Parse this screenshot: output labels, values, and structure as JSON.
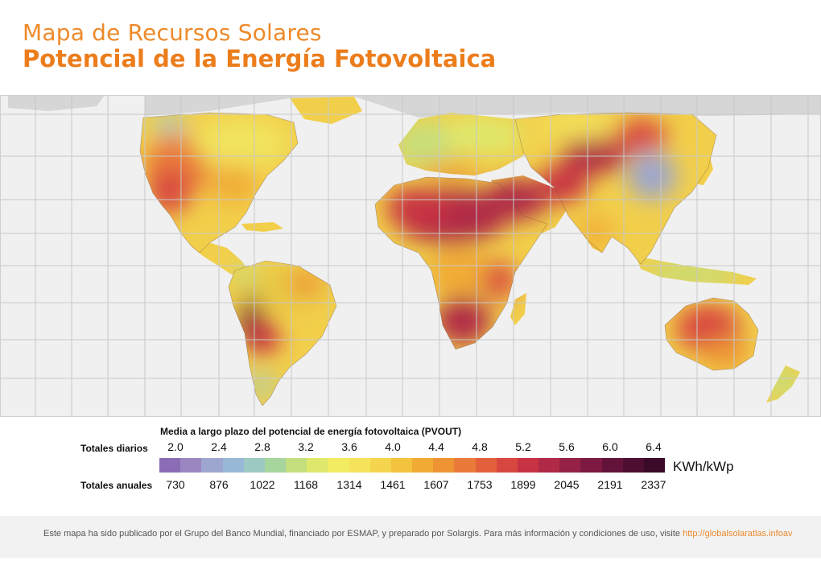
{
  "title": "Mapa de Recursos Solares",
  "subtitle": "Potencial de la Energía Fotovoltaica",
  "legend": {
    "title": "Media a largo plazo del potencial de energía fotovoltaica (PVOUT)",
    "daily_label": "Totales diarios",
    "annual_label": "Totales anuales",
    "unit": "KWh/kWp",
    "daily_ticks": [
      "2.0",
      "2.4",
      "2.8",
      "3.2",
      "3.6",
      "4.0",
      "4.4",
      "4.8",
      "5.2",
      "5.6",
      "6.0",
      "6.4"
    ],
    "annual_ticks": [
      "730",
      "876",
      "1022",
      "1168",
      "1314",
      "1461",
      "1607",
      "1753",
      "1899",
      "2045",
      "2191",
      "2337"
    ],
    "colors": [
      "#8a6db5",
      "#9b86c2",
      "#9ca6cf",
      "#97b9d5",
      "#9ccac3",
      "#a6d59e",
      "#c3df7e",
      "#dfe86d",
      "#f1ec62",
      "#f4e35b",
      "#f5d54e",
      "#f3c23e",
      "#f1ab34",
      "#ee9434",
      "#ea7a3a",
      "#e3603c",
      "#d8473f",
      "#c83343",
      "#b02946",
      "#962146",
      "#7c1a41",
      "#63133a",
      "#4d0e32",
      "#3a0a28"
    ]
  },
  "map": {
    "ocean_color": "#f0f0f0",
    "land_nodata_color": "#d6d6d6",
    "grid_color": "#c8c8c8"
  },
  "footer": {
    "text": "Este mapa ha sido publicado por el Grupo del Banco Mundial, financiado por ESMAP, y preparado por Solargis. Para más información y condiciones de uso, visite",
    "link": "http://globalsolaratlas.infoav"
  }
}
